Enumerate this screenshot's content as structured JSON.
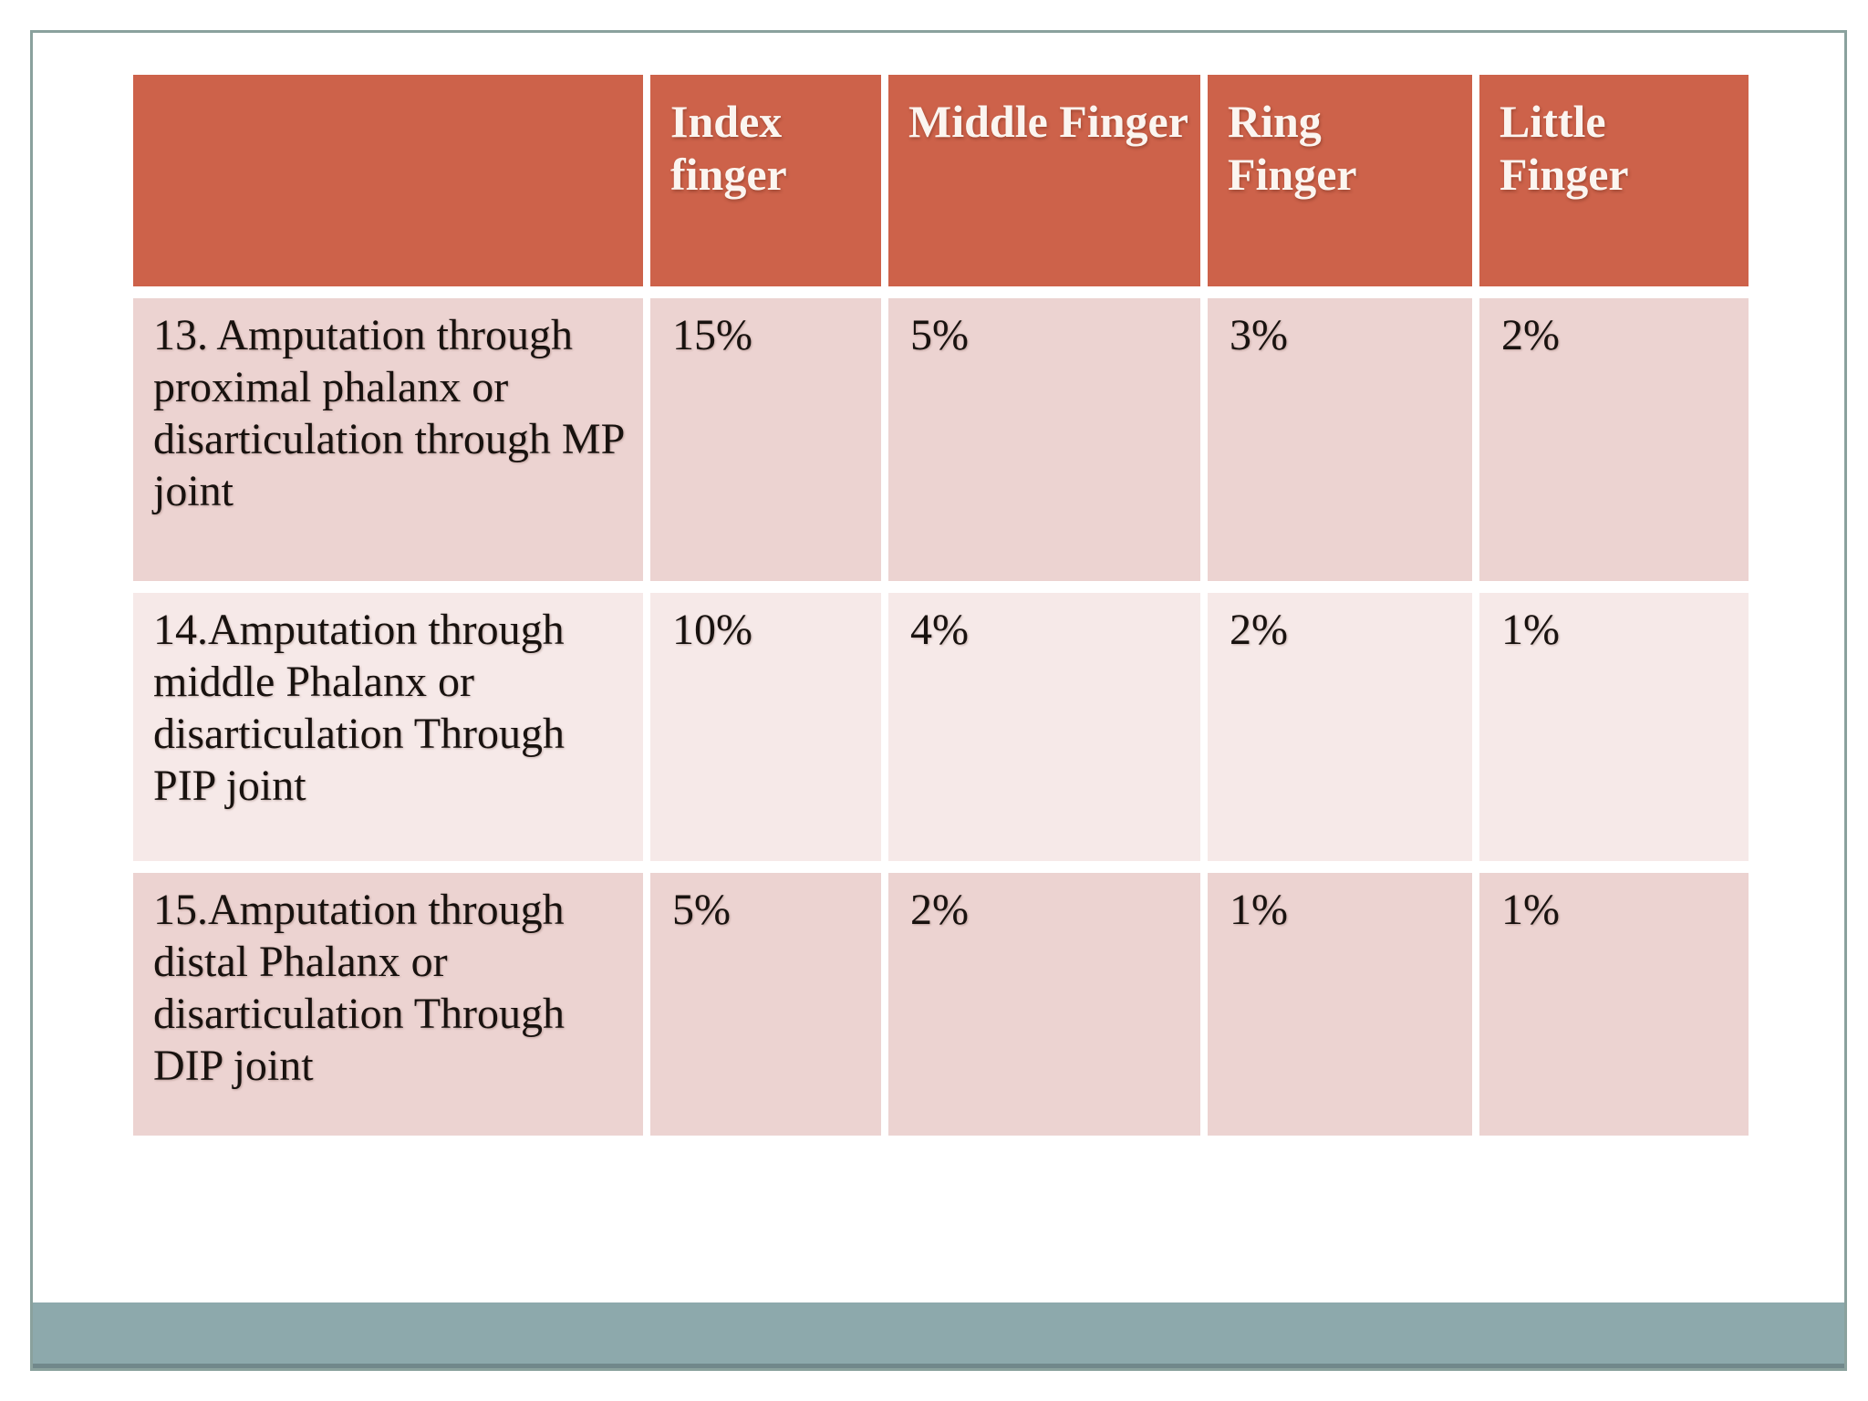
{
  "slide": {
    "accent_colors": {
      "table_header_bg": "#cd624a",
      "table_header_text": "#fbf5f0",
      "row_band_dark": "#ecd3d1",
      "row_band_light": "#f6e9e8",
      "body_text": "#18120f",
      "footer_bar": "#8da9ac",
      "footer_bar_edge": "#71888b",
      "frame_border": "#8aa19d"
    }
  },
  "table": {
    "columns": [
      "",
      "Index finger",
      "Middle Finger",
      "Ring Finger",
      "Little Finger"
    ],
    "rows": [
      {
        "label": "13. Amputation through proximal phalanx or disarticulation through MP joint",
        "values": [
          "15%",
          "5%",
          "3%",
          "2%"
        ]
      },
      {
        "label": "14.Amputation through middle Phalanx or disarticulation Through PIP joint",
        "values": [
          "10%",
          "4%",
          "2%",
          "1%"
        ]
      },
      {
        "label": "15.Amputation through distal Phalanx or disarticulation Through DIP joint",
        "values": [
          "5%",
          "2%",
          "1%",
          "1%"
        ]
      }
    ]
  }
}
